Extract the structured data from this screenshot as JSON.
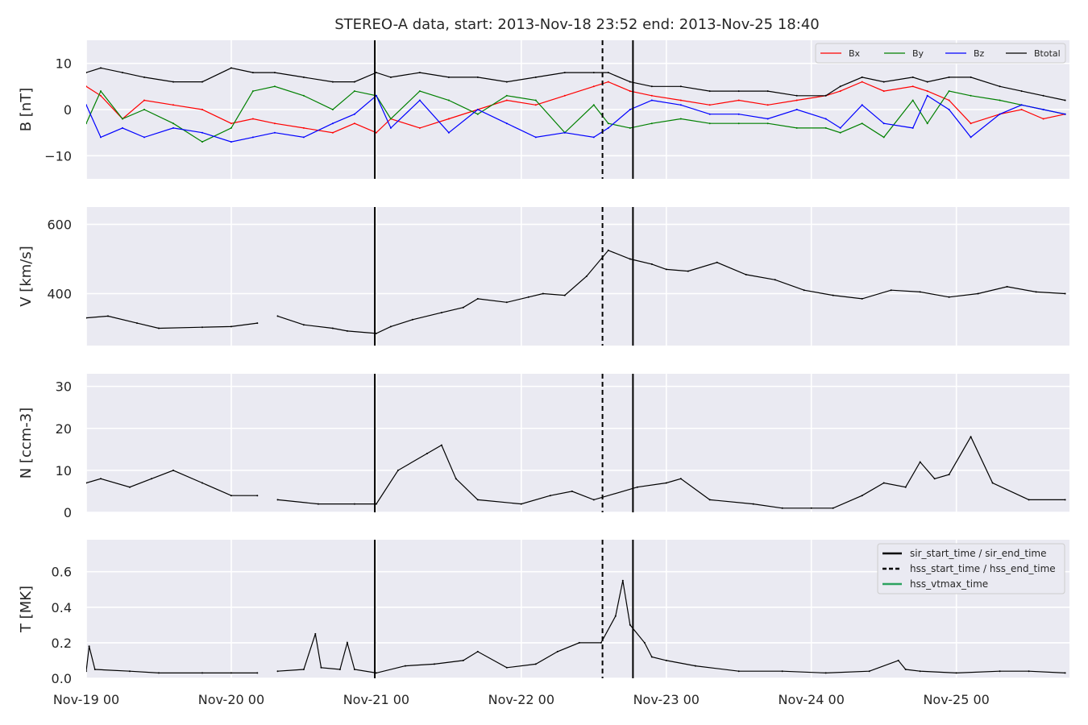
{
  "title": "STEREO-A data, start: 2013-Nov-18 23:52  end: 2013-Nov-25 18:40",
  "colors": {
    "panel_bg": "#eaeaf2",
    "grid": "#ffffff",
    "bx": "#ff0000",
    "by": "#008000",
    "bz": "#0000ff",
    "btotal": "#000000",
    "event_line": "#000000",
    "hss_vtmax": "#2ca25f"
  },
  "chart_data": [
    {
      "type": "line",
      "ylabel": "B [nT]",
      "ylim": [
        -15,
        15
      ],
      "yticks": [
        -10,
        0,
        10
      ],
      "ytick_labels": [
        "−10",
        "0",
        "10"
      ],
      "grid": true,
      "legend_placement": "top-right",
      "series": [
        {
          "name": "Bx",
          "color_key": "bx",
          "x": [
            0.0,
            0.1,
            0.25,
            0.4,
            0.6,
            0.8,
            1.0,
            1.15,
            1.3,
            1.5,
            1.7,
            1.85,
            2.0,
            2.1,
            2.3,
            2.5,
            2.7,
            2.9,
            3.1,
            3.3,
            3.5,
            3.6,
            3.75,
            3.9,
            4.1,
            4.3,
            4.5,
            4.7,
            4.9,
            5.1,
            5.2,
            5.35,
            5.5,
            5.7,
            5.8,
            5.95,
            6.1,
            6.3,
            6.45,
            6.6,
            6.75
          ],
          "y": [
            5,
            3,
            -2,
            2,
            1,
            0,
            -3,
            -2,
            -3,
            -4,
            -5,
            -3,
            -5,
            -2,
            -4,
            -2,
            0,
            2,
            1,
            3,
            5,
            6,
            4,
            3,
            2,
            1,
            2,
            1,
            2,
            3,
            4,
            6,
            4,
            5,
            4,
            2,
            -3,
            -1,
            0,
            -2,
            -1
          ]
        },
        {
          "name": "By",
          "color_key": "by",
          "x": [
            0.0,
            0.1,
            0.25,
            0.4,
            0.6,
            0.8,
            1.0,
            1.15,
            1.3,
            1.5,
            1.7,
            1.85,
            2.0,
            2.1,
            2.3,
            2.5,
            2.7,
            2.9,
            3.1,
            3.3,
            3.5,
            3.6,
            3.75,
            3.9,
            4.1,
            4.3,
            4.5,
            4.7,
            4.9,
            5.1,
            5.2,
            5.35,
            5.5,
            5.7,
            5.8,
            5.95,
            6.1,
            6.3,
            6.45,
            6.6,
            6.75
          ],
          "y": [
            -3,
            4,
            -2,
            0,
            -3,
            -7,
            -4,
            4,
            5,
            3,
            0,
            4,
            3,
            -2,
            4,
            2,
            -1,
            3,
            2,
            -5,
            1,
            -3,
            -4,
            -3,
            -2,
            -3,
            -3,
            -3,
            -4,
            -4,
            -5,
            -3,
            -6,
            2,
            -3,
            4,
            3,
            2,
            1,
            0,
            -1
          ]
        },
        {
          "name": "Bz",
          "color_key": "bz",
          "x": [
            0.0,
            0.1,
            0.25,
            0.4,
            0.6,
            0.8,
            1.0,
            1.15,
            1.3,
            1.5,
            1.7,
            1.85,
            2.0,
            2.1,
            2.3,
            2.5,
            2.7,
            2.9,
            3.1,
            3.3,
            3.5,
            3.6,
            3.75,
            3.9,
            4.1,
            4.3,
            4.5,
            4.7,
            4.9,
            5.1,
            5.2,
            5.35,
            5.5,
            5.7,
            5.8,
            5.95,
            6.1,
            6.3,
            6.45,
            6.6,
            6.75
          ],
          "y": [
            1,
            -6,
            -4,
            -6,
            -4,
            -5,
            -7,
            -6,
            -5,
            -6,
            -3,
            -1,
            3,
            -4,
            2,
            -5,
            0,
            -3,
            -6,
            -5,
            -6,
            -4,
            0,
            2,
            1,
            -1,
            -1,
            -2,
            0,
            -2,
            -4,
            1,
            -3,
            -4,
            3,
            0,
            -6,
            -1,
            1,
            0,
            -1
          ]
        },
        {
          "name": "Btotal",
          "color_key": "btotal",
          "x": [
            0.0,
            0.1,
            0.25,
            0.4,
            0.6,
            0.8,
            1.0,
            1.15,
            1.3,
            1.5,
            1.7,
            1.85,
            2.0,
            2.1,
            2.3,
            2.5,
            2.7,
            2.9,
            3.1,
            3.3,
            3.5,
            3.6,
            3.75,
            3.9,
            4.1,
            4.3,
            4.5,
            4.7,
            4.9,
            5.1,
            5.2,
            5.35,
            5.5,
            5.7,
            5.8,
            5.95,
            6.1,
            6.3,
            6.45,
            6.6,
            6.75
          ],
          "y": [
            8,
            9,
            8,
            7,
            6,
            6,
            9,
            8,
            8,
            7,
            6,
            6,
            8,
            7,
            8,
            7,
            7,
            6,
            7,
            8,
            8,
            8,
            6,
            5,
            5,
            4,
            4,
            4,
            3,
            3,
            5,
            7,
            6,
            7,
            6,
            7,
            7,
            5,
            4,
            3,
            2
          ]
        }
      ]
    },
    {
      "type": "line",
      "ylabel": "V [km/s]",
      "ylim": [
        250,
        650
      ],
      "yticks": [
        400,
        600
      ],
      "ytick_labels": [
        "400",
        "600"
      ],
      "grid": true,
      "series": [
        {
          "color_key": "btotal",
          "gap_after_index": 6,
          "x": [
            0.0,
            0.15,
            0.35,
            0.5,
            0.8,
            1.0,
            1.18,
            1.32,
            1.5,
            1.7,
            1.8,
            2.0,
            2.1,
            2.25,
            2.45,
            2.6,
            2.7,
            2.9,
            3.05,
            3.15,
            3.3,
            3.45,
            3.6,
            3.75,
            3.9,
            4.0,
            4.15,
            4.35,
            4.55,
            4.75,
            4.95,
            5.15,
            5.35,
            5.55,
            5.75,
            5.95,
            6.15,
            6.35,
            6.55,
            6.75
          ],
          "y": [
            330,
            335,
            315,
            300,
            303,
            305,
            315,
            335,
            310,
            300,
            292,
            285,
            305,
            325,
            345,
            360,
            385,
            375,
            390,
            400,
            395,
            450,
            525,
            500,
            485,
            470,
            465,
            490,
            455,
            440,
            410,
            395,
            385,
            410,
            405,
            390,
            400,
            420,
            405,
            400
          ]
        }
      ]
    },
    {
      "type": "line",
      "ylabel": "N [ccm-3]",
      "ylim": [
        0,
        33
      ],
      "yticks": [
        0,
        10,
        20,
        30
      ],
      "ytick_labels": [
        "0",
        "10",
        "20",
        "30"
      ],
      "grid": true,
      "series": [
        {
          "color_key": "btotal",
          "gap_after_index": 7,
          "x": [
            0.0,
            0.1,
            0.3,
            0.45,
            0.6,
            0.8,
            1.0,
            1.18,
            1.32,
            1.6,
            1.85,
            2.0,
            2.15,
            2.35,
            2.45,
            2.55,
            2.7,
            3.0,
            3.2,
            3.35,
            3.5,
            3.8,
            4.0,
            4.1,
            4.3,
            4.6,
            4.8,
            5.0,
            5.15,
            5.35,
            5.5,
            5.65,
            5.75,
            5.85,
            5.95,
            6.1,
            6.25,
            6.5,
            6.75
          ],
          "y": [
            7,
            8,
            6,
            8,
            10,
            7,
            4,
            4,
            3,
            2,
            2,
            2,
            10,
            14,
            16,
            8,
            3,
            2,
            4,
            5,
            3,
            6,
            7,
            8,
            3,
            2,
            1,
            1,
            1,
            4,
            7,
            6,
            12,
            8,
            9,
            18,
            7,
            3,
            3
          ]
        }
      ]
    },
    {
      "type": "line",
      "ylabel": "T [MK]",
      "ylim": [
        0,
        0.78
      ],
      "yticks": [
        0.0,
        0.2,
        0.4,
        0.6
      ],
      "ytick_labels": [
        "0.0",
        "0.2",
        "0.4",
        "0.6"
      ],
      "grid": true,
      "legend_placement": "top-right",
      "series": [
        {
          "color_key": "btotal",
          "gap_after_index": 7,
          "x": [
            0.0,
            0.02,
            0.06,
            0.3,
            0.5,
            0.8,
            1.0,
            1.18,
            1.32,
            1.5,
            1.58,
            1.62,
            1.75,
            1.8,
            1.85,
            2.0,
            2.2,
            2.4,
            2.6,
            2.7,
            2.9,
            3.1,
            3.25,
            3.4,
            3.55,
            3.65,
            3.7,
            3.75,
            3.85,
            3.9,
            4.0,
            4.2,
            4.5,
            4.8,
            5.1,
            5.4,
            5.6,
            5.65,
            5.75,
            6.0,
            6.3,
            6.5,
            6.75
          ],
          "y": [
            0.04,
            0.18,
            0.05,
            0.04,
            0.03,
            0.03,
            0.03,
            0.03,
            0.04,
            0.05,
            0.25,
            0.06,
            0.05,
            0.2,
            0.05,
            0.03,
            0.07,
            0.08,
            0.1,
            0.15,
            0.06,
            0.08,
            0.15,
            0.2,
            0.2,
            0.35,
            0.55,
            0.3,
            0.2,
            0.12,
            0.1,
            0.07,
            0.04,
            0.04,
            0.03,
            0.04,
            0.1,
            0.05,
            0.04,
            0.03,
            0.04,
            0.04,
            0.03
          ]
        }
      ]
    }
  ],
  "x_axis": {
    "range": [
      0.0,
      6.78
    ],
    "ticks": [
      0,
      1,
      2,
      3,
      4,
      5,
      6
    ],
    "tick_labels": [
      "Nov-19 00",
      "Nov-20 00",
      "Nov-21 00",
      "Nov-22 00",
      "Nov-23 00",
      "Nov-24 00",
      "Nov-25 00"
    ]
  },
  "events": {
    "sir_start": 1.99,
    "sir_end": 3.77,
    "hss_start": 3.56
  },
  "legends": {
    "b": [
      "Bx",
      "By",
      "Bz",
      "Btotal"
    ],
    "events": [
      "sir_start_time / sir_end_time",
      "hss_start_time / hss_end_time",
      "hss_vtmax_time"
    ]
  }
}
